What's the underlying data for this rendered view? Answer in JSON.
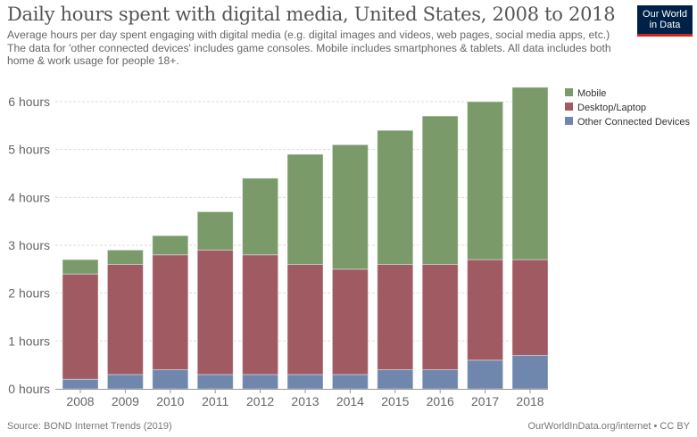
{
  "header": {
    "title": "Daily hours spent with digital media, United States, 2008 to 2018",
    "subtitle": "Average hours per day spent engaging with digital media (e.g. digital images and videos, web pages, social media apps, etc.) The data for 'other connected devices' includes game consoles. Mobile includes smartphones & tablets. All data includes both home & work usage for people 18+.",
    "logo_line1": "Our World",
    "logo_line2": "in Data"
  },
  "colors": {
    "mobile": "#7a9a6a",
    "desktop": "#a05a62",
    "other": "#6f87ad",
    "logo_bg": "#002147",
    "logo_accent": "#ce261e"
  },
  "chart_data": {
    "type": "bar",
    "stacked": true,
    "title": "Daily hours spent with digital media, United States, 2008 to 2018",
    "xlabel": "",
    "ylabel": "",
    "categories": [
      "2008",
      "2009",
      "2010",
      "2011",
      "2012",
      "2013",
      "2014",
      "2015",
      "2016",
      "2017",
      "2018"
    ],
    "series": [
      {
        "name": "Other Connected Devices",
        "color": "#6f87ad",
        "values": [
          0.2,
          0.3,
          0.4,
          0.3,
          0.3,
          0.3,
          0.3,
          0.4,
          0.4,
          0.6,
          0.7
        ]
      },
      {
        "name": "Desktop/Laptop",
        "color": "#a05a62",
        "values": [
          2.2,
          2.3,
          2.4,
          2.6,
          2.5,
          2.3,
          2.2,
          2.2,
          2.2,
          2.1,
          2.0
        ]
      },
      {
        "name": "Mobile",
        "color": "#7a9a6a",
        "values": [
          0.3,
          0.3,
          0.4,
          0.8,
          1.6,
          2.3,
          2.6,
          2.8,
          3.1,
          3.3,
          3.6
        ]
      }
    ],
    "ylim": [
      0,
      6.3
    ],
    "yticks": [
      0,
      1,
      2,
      3,
      4,
      5,
      6
    ],
    "ytick_labels": [
      "0 hours",
      "1 hours",
      "2 hours",
      "3 hours",
      "4 hours",
      "5 hours",
      "6 hours"
    ],
    "grid": true,
    "legend": {
      "placement": "top-right",
      "entries": [
        "Mobile",
        "Desktop/Laptop",
        "Other Connected Devices"
      ]
    }
  },
  "footer": {
    "source": "Source: BOND Internet Trends (2019)",
    "credit": "OurWorldInData.org/internet • CC BY"
  }
}
